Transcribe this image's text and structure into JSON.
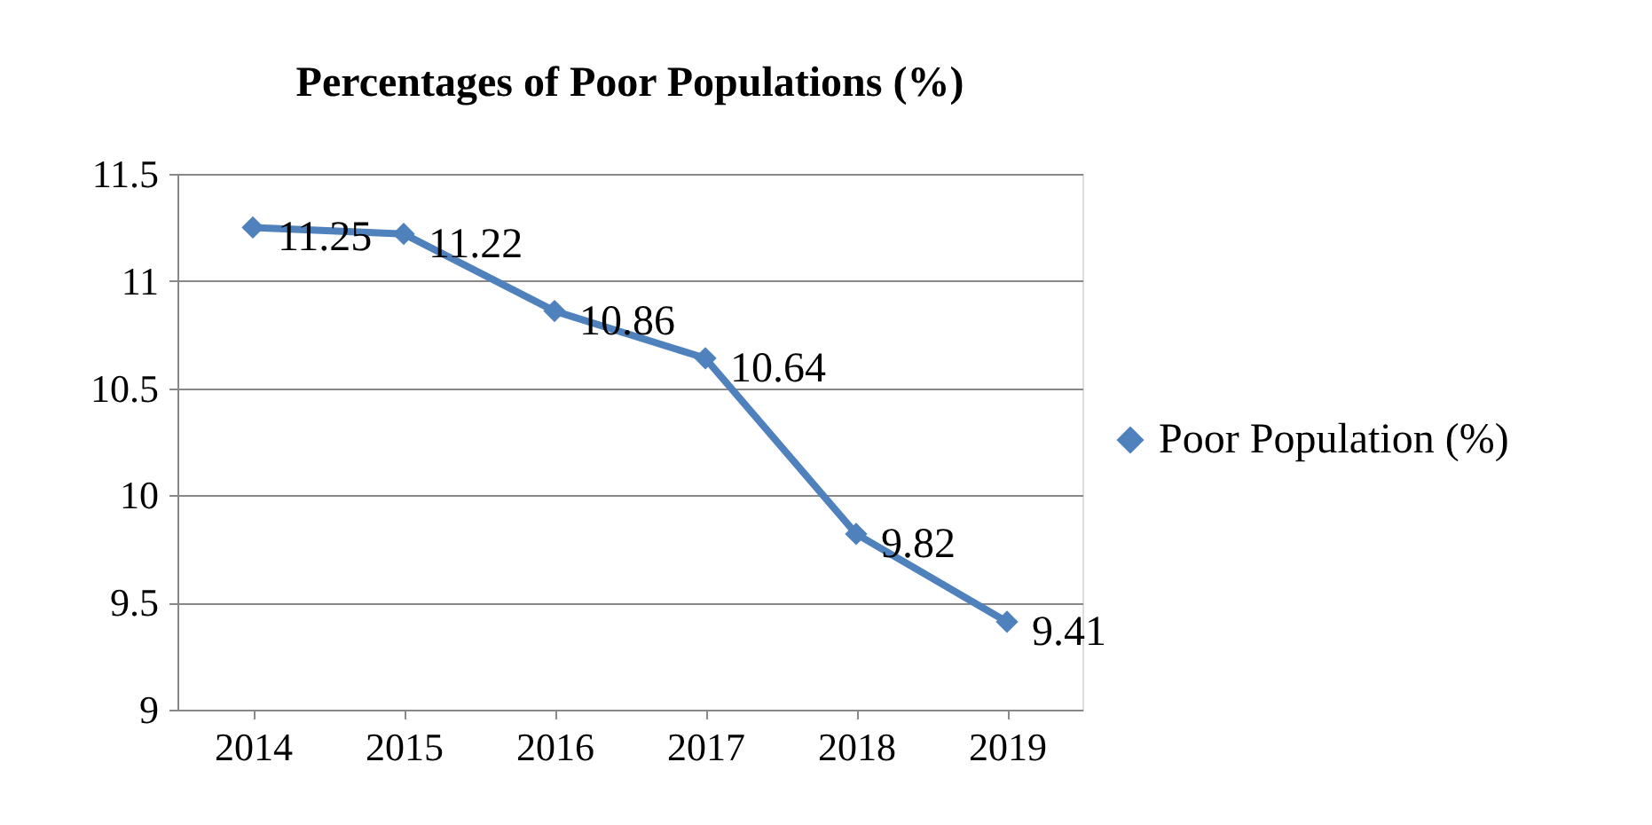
{
  "chart_data": {
    "type": "line",
    "title": "Percentages of Poor Populations (%)",
    "categories": [
      "2014",
      "2015",
      "2016",
      "2017",
      "2018",
      "2019"
    ],
    "series": [
      {
        "name": "Poor Population (%)",
        "color": "#4f81bd",
        "values": [
          11.25,
          11.22,
          10.86,
          10.64,
          9.82,
          9.41
        ]
      }
    ],
    "ylim": [
      9,
      11.5
    ],
    "yticks": [
      9,
      9.5,
      10,
      10.5,
      11,
      11.5
    ],
    "grid": "y",
    "legend": "right",
    "marker": "diamond",
    "line_style": "solid",
    "data_labels": true
  }
}
